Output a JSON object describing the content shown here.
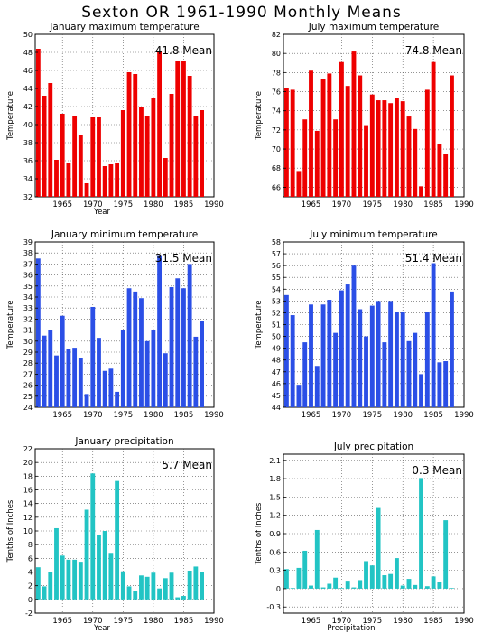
{
  "page": {
    "title": "Sexton OR   1961-1990 Monthly Means"
  },
  "chart_data": [
    {
      "type": "bar",
      "title": "January maximum temperature",
      "ylabel": "Temperature",
      "xlabel": "Year",
      "annotation": "41.8 Mean",
      "color": "#ee0000",
      "ylim": [
        32,
        50
      ],
      "yticks": [
        32,
        34,
        36,
        38,
        40,
        42,
        44,
        46,
        48,
        50
      ],
      "xlim": [
        1960.5,
        1990
      ],
      "xticks": [
        1965,
        1970,
        1975,
        1980,
        1985,
        1990
      ],
      "x": [
        1961,
        1962,
        1963,
        1964,
        1965,
        1966,
        1967,
        1968,
        1969,
        1970,
        1971,
        1972,
        1973,
        1974,
        1975,
        1976,
        1977,
        1978,
        1979,
        1980,
        1981,
        1982,
        1983,
        1984,
        1985,
        1986,
        1987,
        1988
      ],
      "values": [
        48.4,
        43.2,
        44.6,
        36.1,
        41.2,
        35.8,
        40.9,
        38.8,
        33.5,
        40.8,
        40.8,
        35.4,
        35.6,
        35.8,
        41.6,
        45.8,
        45.6,
        42.0,
        40.9,
        42.9,
        48.2,
        36.3,
        43.4,
        47.0,
        47.0,
        45.4,
        40.9,
        41.6
      ]
    },
    {
      "type": "bar",
      "title": "July maximum temperature",
      "ylabel": "Temperature",
      "xlabel": "",
      "annotation": "74.8 Mean",
      "color": "#ee0000",
      "ylim": [
        65,
        82
      ],
      "yticks": [
        66,
        68,
        70,
        72,
        74,
        76,
        78,
        80,
        82
      ],
      "xlim": [
        1960.5,
        1990
      ],
      "xticks": [
        1965,
        1970,
        1975,
        1980,
        1985,
        1990
      ],
      "x": [
        1961,
        1962,
        1963,
        1964,
        1965,
        1966,
        1967,
        1968,
        1969,
        1970,
        1971,
        1972,
        1973,
        1974,
        1975,
        1976,
        1977,
        1978,
        1979,
        1980,
        1981,
        1982,
        1983,
        1984,
        1985,
        1986,
        1987,
        1988
      ],
      "values": [
        76.4,
        76.2,
        67.7,
        73.1,
        78.2,
        71.9,
        77.3,
        77.9,
        73.1,
        79.1,
        76.6,
        80.2,
        77.7,
        72.5,
        75.7,
        75.1,
        75.1,
        74.8,
        75.3,
        75.0,
        73.4,
        72.1,
        66.1,
        76.2,
        79.1,
        70.5,
        69.5,
        77.7
      ]
    },
    {
      "type": "bar",
      "title": "January minimum temperature",
      "ylabel": "Temperature",
      "xlabel": "",
      "annotation": "31.5 Mean",
      "color": "#2b4fe6",
      "ylim": [
        24,
        39
      ],
      "yticks": [
        24,
        25,
        26,
        27,
        28,
        29,
        30,
        31,
        32,
        33,
        34,
        35,
        36,
        37,
        38,
        39
      ],
      "xlim": [
        1960.5,
        1990
      ],
      "xticks": [
        1965,
        1970,
        1975,
        1980,
        1985,
        1990
      ],
      "x": [
        1961,
        1962,
        1963,
        1964,
        1965,
        1966,
        1967,
        1968,
        1969,
        1970,
        1971,
        1972,
        1973,
        1974,
        1975,
        1976,
        1977,
        1978,
        1979,
        1980,
        1981,
        1982,
        1983,
        1984,
        1985,
        1986,
        1987,
        1988
      ],
      "values": [
        37.5,
        30.5,
        31.0,
        28.7,
        32.3,
        29.3,
        29.4,
        28.5,
        25.2,
        33.1,
        30.3,
        27.3,
        27.5,
        25.4,
        31.0,
        34.8,
        34.5,
        33.9,
        30.0,
        31.0,
        37.8,
        28.9,
        34.9,
        35.7,
        34.8,
        37.0,
        30.4,
        31.8
      ]
    },
    {
      "type": "bar",
      "title": "July minimum temperature",
      "ylabel": "Temperature",
      "xlabel": "",
      "annotation": "51.4 Mean",
      "color": "#2b4fe6",
      "ylim": [
        44,
        58
      ],
      "yticks": [
        44,
        45,
        46,
        47,
        48,
        49,
        50,
        51,
        52,
        53,
        54,
        55,
        56,
        57,
        58
      ],
      "xlim": [
        1960.5,
        1990
      ],
      "xticks": [
        1965,
        1970,
        1975,
        1980,
        1985,
        1990
      ],
      "x": [
        1961,
        1962,
        1963,
        1964,
        1965,
        1966,
        1967,
        1968,
        1969,
        1970,
        1971,
        1972,
        1973,
        1974,
        1975,
        1976,
        1977,
        1978,
        1979,
        1980,
        1981,
        1982,
        1983,
        1984,
        1985,
        1986,
        1987,
        1988
      ],
      "values": [
        53.5,
        51.8,
        45.9,
        49.5,
        52.7,
        47.5,
        52.7,
        53.1,
        50.3,
        53.9,
        54.4,
        56.0,
        52.3,
        50.0,
        52.6,
        53.0,
        49.5,
        53.0,
        52.1,
        52.1,
        49.6,
        50.3,
        46.8,
        52.1,
        56.2,
        47.8,
        47.9,
        53.8
      ]
    },
    {
      "type": "bar",
      "title": "January precipitation",
      "ylabel": "Tenths of Inches",
      "xlabel": "Year",
      "annotation": "5.7 Mean",
      "color": "#22c4c4",
      "ylim": [
        -2,
        22
      ],
      "yticks": [
        -2,
        0,
        2,
        4,
        6,
        8,
        10,
        12,
        14,
        16,
        18,
        20,
        22
      ],
      "xlim": [
        1960.5,
        1990
      ],
      "xticks": [
        1965,
        1970,
        1975,
        1980,
        1985,
        1990
      ],
      "x": [
        1961,
        1962,
        1963,
        1964,
        1965,
        1966,
        1967,
        1968,
        1969,
        1970,
        1971,
        1972,
        1973,
        1974,
        1975,
        1976,
        1977,
        1978,
        1979,
        1980,
        1981,
        1982,
        1983,
        1984,
        1985,
        1986,
        1987,
        1988
      ],
      "values": [
        4.7,
        1.9,
        4.0,
        10.4,
        6.4,
        5.8,
        5.8,
        5.5,
        13.1,
        18.4,
        9.4,
        10.0,
        6.8,
        17.3,
        4.1,
        1.9,
        1.2,
        3.5,
        3.3,
        3.9,
        1.6,
        3.1,
        3.9,
        0.3,
        0.5,
        4.2,
        4.8,
        4.0
      ]
    },
    {
      "type": "bar",
      "title": "July precipitation",
      "ylabel": "Tenths of Inches",
      "xlabel": "Precipitation",
      "annotation": "0.3 Mean",
      "color": "#22c4c4",
      "ylim": [
        -0.4,
        2.2
      ],
      "yticks": [
        -0.3,
        0,
        0.3,
        0.6,
        0.9,
        1.2,
        1.5,
        1.8,
        2.1
      ],
      "xlim": [
        1960.5,
        1990
      ],
      "xticks": [
        1965,
        1970,
        1975,
        1980,
        1985,
        1990
      ],
      "x": [
        1961,
        1962,
        1963,
        1964,
        1965,
        1966,
        1967,
        1968,
        1969,
        1970,
        1971,
        1972,
        1973,
        1974,
        1975,
        1976,
        1977,
        1978,
        1979,
        1980,
        1981,
        1982,
        1983,
        1984,
        1985,
        1986,
        1987,
        1988
      ],
      "values": [
        0.32,
        0.01,
        0.34,
        0.62,
        0.05,
        0.96,
        0.02,
        0.08,
        0.18,
        0.01,
        0.13,
        0.02,
        0.14,
        0.45,
        0.38,
        1.32,
        0.22,
        0.24,
        0.5,
        0.05,
        0.16,
        0.06,
        1.81,
        0.04,
        0.2,
        0.11,
        1.12,
        0.01
      ]
    }
  ]
}
